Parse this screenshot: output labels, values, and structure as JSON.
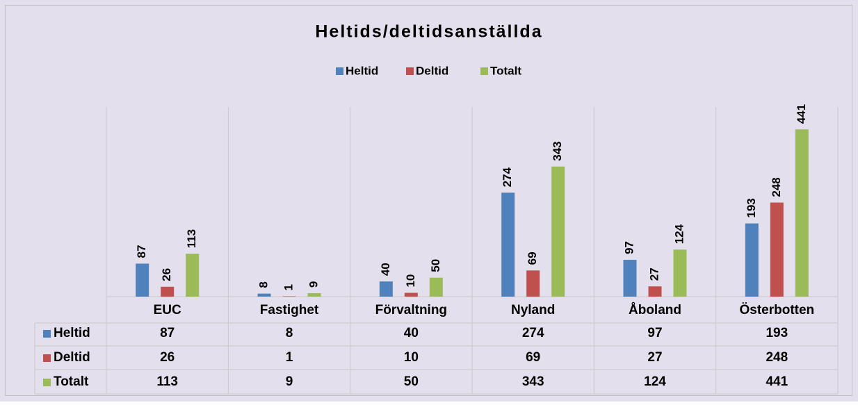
{
  "chart_data": {
    "type": "bar",
    "title": "Heltids/deltidsanställda",
    "categories": [
      "EUC",
      "Fastighet",
      "Förvaltning",
      "Nyland",
      "Åboland",
      "Österbotten"
    ],
    "series": [
      {
        "name": "Heltid",
        "color": "#4f81bd",
        "values": [
          87,
          8,
          40,
          274,
          97,
          193
        ]
      },
      {
        "name": "Deltid",
        "color": "#c0504d",
        "values": [
          26,
          1,
          10,
          69,
          27,
          248
        ]
      },
      {
        "name": "Totalt",
        "color": "#9bbb59",
        "values": [
          113,
          9,
          50,
          343,
          124,
          441
        ]
      }
    ],
    "ylim": [
      0,
      500
    ],
    "legend": "top",
    "data_table": true
  }
}
